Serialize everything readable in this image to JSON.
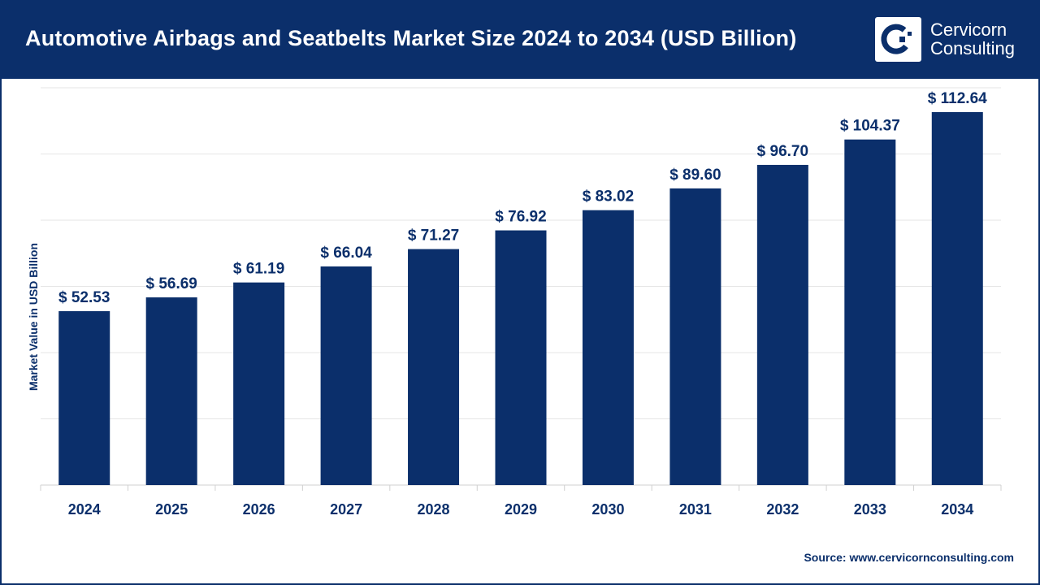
{
  "header": {
    "title": "Automotive Airbags and Seatbelts Market Size 2024 to 2034 (USD Billion)"
  },
  "logo": {
    "line1": "Cervicorn",
    "line2": "Consulting"
  },
  "source": "Source: www.cervicornconsulting.com",
  "colors": {
    "bar": "#0b2f6b",
    "header": "#0b2f6b",
    "grid": "#e6e6e6"
  },
  "chart_data": {
    "type": "bar",
    "title": "Automotive Airbags and Seatbelts Market Size 2024 to 2034 (USD Billion)",
    "xlabel": "",
    "ylabel": "Market Value in USD Billion",
    "ylim": [
      0,
      120
    ],
    "grid": true,
    "categories": [
      "2024",
      "2025",
      "2026",
      "2027",
      "2028",
      "2029",
      "2030",
      "2031",
      "2032",
      "2033",
      "2034"
    ],
    "values": [
      52.53,
      56.69,
      61.19,
      66.04,
      71.27,
      76.92,
      83.02,
      89.6,
      96.7,
      104.37,
      112.64
    ],
    "data_labels": [
      "$ 52.53",
      "$ 56.69",
      "$ 61.19",
      "$ 66.04",
      "$ 71.27",
      "$ 76.92",
      "$ 83.02",
      "$ 89.60",
      "$ 96.70",
      "$ 104.37",
      "$ 112.64"
    ]
  }
}
